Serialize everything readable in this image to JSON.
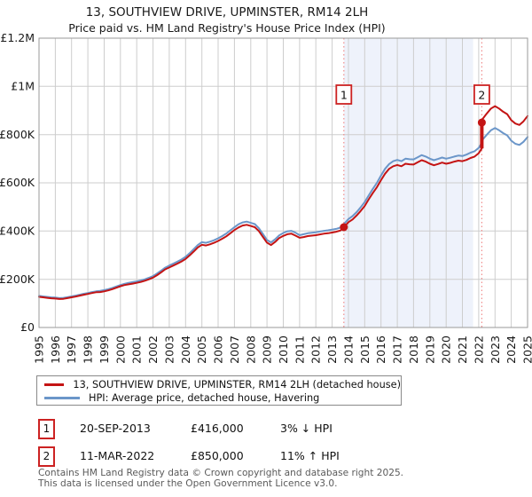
{
  "title": "13, SOUTHVIEW DRIVE, UPMINSTER, RM14 2LH",
  "subtitle": "Price paid vs. HM Land Registry's House Price Index (HPI)",
  "legend": [
    {
      "label": "13, SOUTHVIEW DRIVE, UPMINSTER, RM14 2LH (detached house)"
    },
    {
      "label": "HPI: Average price, detached house, Havering"
    }
  ],
  "sales": [
    {
      "num": "1",
      "date": "20-SEP-2013",
      "price": "£416,000",
      "hpi_diff": "3% ↓ HPI"
    },
    {
      "num": "2",
      "date": "11-MAR-2022",
      "price": "£850,000",
      "hpi_diff": "11% ↑ HPI"
    }
  ],
  "footer": {
    "line1": "Contains HM Land Registry data © Crown copyright and database right 2025.",
    "line2": "This data is licensed under the Open Government Licence v3.0."
  },
  "chart_data": {
    "type": "line",
    "title": "13, SOUTHVIEW DRIVE, UPMINSTER, RM14 2LH — Price paid vs. HPI",
    "y_unit": "£ thousands",
    "xlim": [
      1995,
      2025
    ],
    "ylim": [
      0,
      1200
    ],
    "grid": true,
    "yticks": [
      {
        "value": 0,
        "label": "£0"
      },
      {
        "value": 200,
        "label": "£200K"
      },
      {
        "value": 400,
        "label": "£400K"
      },
      {
        "value": 600,
        "label": "£600K"
      },
      {
        "value": 800,
        "label": "£800K"
      },
      {
        "value": 1000,
        "label": "£1M"
      },
      {
        "value": 1200,
        "label": "£1.2M"
      }
    ],
    "xticks": [
      "1995",
      "1996",
      "1997",
      "1998",
      "1999",
      "2000",
      "2001",
      "2002",
      "2003",
      "2004",
      "2005",
      "2006",
      "2007",
      "2008",
      "2009",
      "2010",
      "2011",
      "2012",
      "2013",
      "2014",
      "2015",
      "2016",
      "2017",
      "2018",
      "2019",
      "2020",
      "2021",
      "2022",
      "2023",
      "2024",
      "2025"
    ],
    "colors": {
      "price_line": "#c41414",
      "hpi_line": "#6b96c9",
      "band": "#eef2fb",
      "grid": "#cdcdcd",
      "border": "#9a9a9a",
      "sale_dashed": "#f08c8c",
      "marker_box_border": "#cc2222"
    },
    "band": {
      "from": 2013.72,
      "to": 2021.66
    },
    "sale_lines": [
      2013.72,
      2022.19
    ],
    "markers": [
      {
        "n": "1",
        "x": 2013.72,
        "y": 416
      },
      {
        "n": "2",
        "x": 2022.19,
        "y": 850
      }
    ],
    "jump": {
      "x": 2022.19,
      "from": 743,
      "to": 850
    },
    "series": [
      {
        "name": "13, SOUTHVIEW DRIVE, UPMINSTER, RM14 2LH (detached house)",
        "color": "#c41414",
        "x": [
          1995,
          1995.25,
          1995.5,
          1995.75,
          1996,
          1996.25,
          1996.5,
          1996.75,
          1997,
          1997.25,
          1997.5,
          1997.75,
          1998,
          1998.25,
          1998.5,
          1998.75,
          1999,
          1999.25,
          1999.5,
          1999.75,
          2000,
          2000.25,
          2000.5,
          2000.75,
          2001,
          2001.25,
          2001.5,
          2001.75,
          2002,
          2002.25,
          2002.5,
          2002.75,
          2003,
          2003.25,
          2003.5,
          2003.75,
          2004,
          2004.25,
          2004.5,
          2004.75,
          2005,
          2005.25,
          2005.5,
          2005.75,
          2006,
          2006.25,
          2006.5,
          2006.75,
          2007,
          2007.25,
          2007.5,
          2007.75,
          2008,
          2008.25,
          2008.5,
          2008.75,
          2009,
          2009.25,
          2009.5,
          2009.75,
          2010,
          2010.25,
          2010.5,
          2010.75,
          2011,
          2011.25,
          2011.5,
          2011.75,
          2012,
          2012.25,
          2012.5,
          2012.75,
          2013,
          2013.25,
          2013.5,
          2013.72,
          2013.75,
          2014,
          2014.25,
          2014.5,
          2014.75,
          2015,
          2015.25,
          2015.5,
          2015.75,
          2016,
          2016.25,
          2016.5,
          2016.75,
          2017,
          2017.25,
          2017.5,
          2017.75,
          2018,
          2018.25,
          2018.5,
          2018.75,
          2019,
          2019.25,
          2019.5,
          2019.75,
          2020,
          2020.25,
          2020.5,
          2020.75,
          2021,
          2021.25,
          2021.5,
          2021.75,
          2022,
          2022.19,
          2022.19,
          2022.25,
          2022.5,
          2022.75,
          2023,
          2023.25,
          2023.5,
          2023.75,
          2024,
          2024.25,
          2024.5,
          2024.75,
          2025
        ],
        "y": [
          127,
          125,
          123,
          121,
          120,
          118,
          119,
          122,
          125,
          128,
          132,
          136,
          139,
          143,
          146,
          147,
          150,
          154,
          159,
          165,
          171,
          176,
          179,
          182,
          185,
          189,
          194,
          200,
          207,
          217,
          229,
          241,
          249,
          257,
          265,
          274,
          284,
          299,
          315,
          332,
          343,
          340,
          345,
          351,
          359,
          368,
          378,
          391,
          404,
          415,
          423,
          426,
          421,
          416,
          400,
          376,
          352,
          342,
          355,
          371,
          380,
          387,
          389,
          381,
          372,
          375,
          379,
          381,
          383,
          386,
          389,
          391,
          394,
          397,
          402,
          416,
          418,
          437,
          448,
          464,
          483,
          504,
          532,
          558,
          582,
          611,
          638,
          658,
          669,
          674,
          669,
          679,
          677,
          676,
          685,
          694,
          688,
          679,
          673,
          678,
          684,
          679,
          683,
          688,
          692,
          690,
          695,
          703,
          709,
          723,
          743,
          850,
          866,
          888,
          908,
          918,
          908,
          895,
          885,
          860,
          846,
          840,
          855,
          877
        ]
      },
      {
        "name": "HPI: Average price, detached house, Havering",
        "color": "#6b96c9",
        "x": [
          1995,
          1995.25,
          1995.5,
          1995.75,
          1996,
          1996.25,
          1996.5,
          1996.75,
          1997,
          1997.25,
          1997.5,
          1997.75,
          1998,
          1998.25,
          1998.5,
          1998.75,
          1999,
          1999.25,
          1999.5,
          1999.75,
          2000,
          2000.25,
          2000.5,
          2000.75,
          2001,
          2001.25,
          2001.5,
          2001.75,
          2002,
          2002.25,
          2002.5,
          2002.75,
          2003,
          2003.25,
          2003.5,
          2003.75,
          2004,
          2004.25,
          2004.5,
          2004.75,
          2005,
          2005.25,
          2005.5,
          2005.75,
          2006,
          2006.25,
          2006.5,
          2006.75,
          2007,
          2007.25,
          2007.5,
          2007.75,
          2008,
          2008.25,
          2008.5,
          2008.75,
          2009,
          2009.25,
          2009.5,
          2009.75,
          2010,
          2010.25,
          2010.5,
          2010.75,
          2011,
          2011.25,
          2011.5,
          2011.75,
          2012,
          2012.25,
          2012.5,
          2012.75,
          2013,
          2013.25,
          2013.5,
          2013.72,
          2013.75,
          2014,
          2014.25,
          2014.5,
          2014.75,
          2015,
          2015.25,
          2015.5,
          2015.75,
          2016,
          2016.25,
          2016.5,
          2016.75,
          2017,
          2017.25,
          2017.5,
          2017.75,
          2018,
          2018.25,
          2018.5,
          2018.75,
          2019,
          2019.25,
          2019.5,
          2019.75,
          2020,
          2020.25,
          2020.5,
          2020.75,
          2021,
          2021.25,
          2021.5,
          2021.75,
          2022,
          2022.19,
          2022.25,
          2022.5,
          2022.75,
          2023,
          2023.25,
          2023.5,
          2023.75,
          2024,
          2024.25,
          2024.5,
          2024.75,
          2025
        ],
        "y": [
          131,
          129,
          127,
          125,
          124,
          122,
          123,
          126,
          129,
          132,
          136,
          140,
          143,
          147,
          150,
          152,
          155,
          159,
          164,
          170,
          176,
          181,
          185,
          188,
          191,
          195,
          200,
          206,
          213,
          224,
          236,
          248,
          257,
          265,
          273,
          282,
          293,
          308,
          325,
          342,
          354,
          351,
          356,
          362,
          370,
          379,
          390,
          403,
          416,
          428,
          436,
          439,
          434,
          429,
          412,
          388,
          363,
          353,
          366,
          382,
          392,
          399,
          401,
          393,
          383,
          387,
          391,
          393,
          395,
          398,
          401,
          403,
          406,
          409,
          414,
          429,
          431,
          450,
          462,
          478,
          498,
          520,
          548,
          575,
          600,
          630,
          658,
          678,
          690,
          695,
          690,
          700,
          698,
          697,
          706,
          715,
          709,
          700,
          694,
          699,
          705,
          700,
          704,
          709,
          713,
          711,
          717,
          725,
          731,
          745,
          766,
          780,
          800,
          818,
          827,
          818,
          806,
          797,
          775,
          762,
          757,
          770,
          790
        ]
      }
    ]
  }
}
